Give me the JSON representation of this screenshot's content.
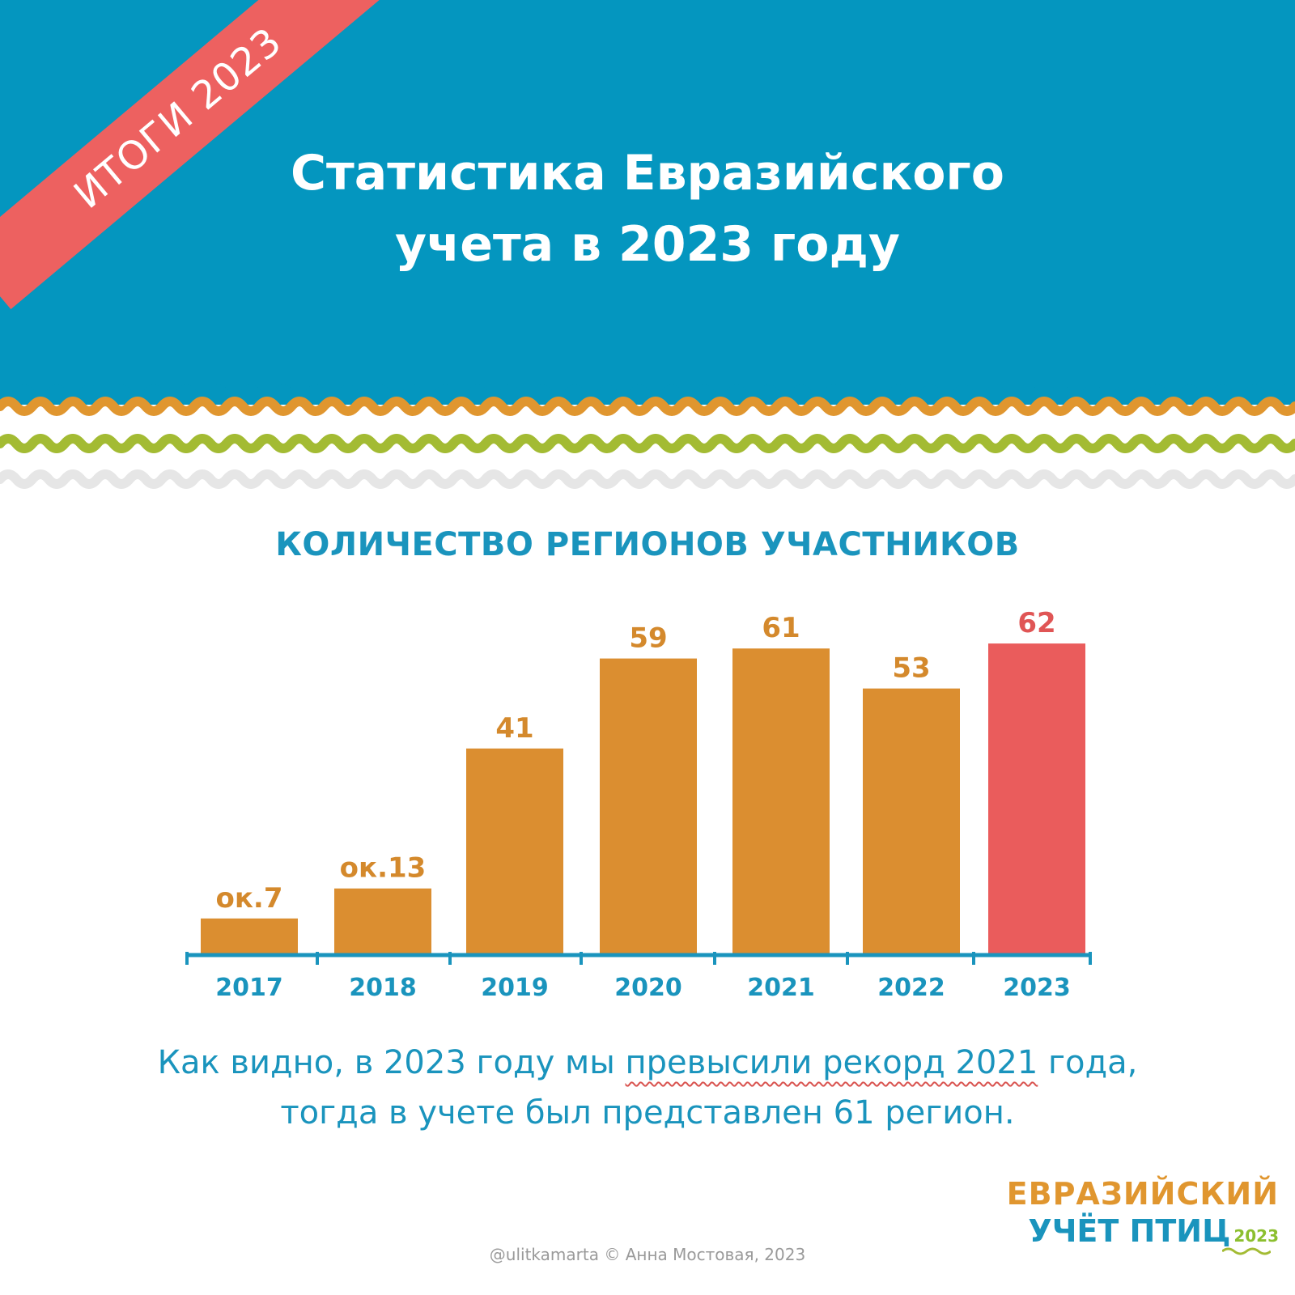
{
  "colors": {
    "header_bg": "#0496bf",
    "ribbon": "#ed6160",
    "bar_default": "#db8e30",
    "bar_highlight": "#ea5c5c",
    "label_default": "#d4892c",
    "label_highlight": "#e05555",
    "axis": "#1a94bd",
    "wave_white": "#ffffff",
    "wave_orange": "#e0962f",
    "wave_green": "#a3bb33",
    "wave_gray": "#e6e6e6"
  },
  "ribbon": {
    "text": "ИТОГИ 2023"
  },
  "title": {
    "line1": "Статистика Евразийского",
    "line2": "учета в 2023 году"
  },
  "chart_data": {
    "type": "bar",
    "title": "КОЛИЧЕСТВО РЕГИОНОВ УЧАСТНИКОВ",
    "categories": [
      "2017",
      "2018",
      "2019",
      "2020",
      "2021",
      "2022",
      "2023"
    ],
    "values": [
      7,
      13,
      41,
      59,
      61,
      53,
      62
    ],
    "value_labels": [
      "ок.7",
      "ок.13",
      "41",
      "59",
      "61",
      "53",
      "62"
    ],
    "highlight_index": 6,
    "xlabel": "",
    "ylabel": "",
    "ylim": [
      0,
      68
    ],
    "grid": false,
    "legend": "none"
  },
  "caption": {
    "line1_pre": "Как видно, в 2023 году мы ",
    "line1_highlight": "превысили рекорд 2021",
    "line1_post": " года,",
    "line2": "тогда в учете был представлен 61 регион."
  },
  "logo": {
    "line1": "ЕВРАЗИЙСКИЙ",
    "line2": "УЧЁТ ПТИЦ",
    "year": "2023"
  },
  "copyright": "@ulitkamarta © Анна Мостовая, 2023"
}
